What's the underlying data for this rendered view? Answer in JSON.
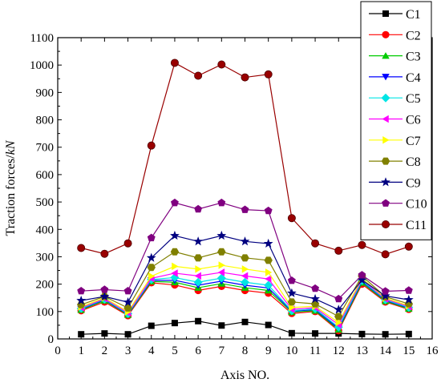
{
  "chart_data": {
    "type": "line",
    "xlabel": "Axis NO.",
    "ylabel_main": "Traction forces/",
    "ylabel_unit": "kN",
    "xlim": [
      0,
      16
    ],
    "ylim": [
      0,
      1100
    ],
    "x_ticks": [
      0,
      1,
      2,
      3,
      4,
      5,
      6,
      7,
      8,
      9,
      10,
      11,
      12,
      13,
      14,
      15,
      16
    ],
    "y_ticks": [
      0,
      100,
      200,
      300,
      400,
      500,
      600,
      700,
      800,
      900,
      1000,
      1100
    ],
    "grid": false,
    "legend_position": "top-right",
    "x": [
      1,
      2,
      3,
      4,
      5,
      6,
      7,
      8,
      9,
      10,
      11,
      12,
      13,
      14,
      15
    ],
    "series": [
      {
        "name": "C1",
        "color": "#000000",
        "marker": "square",
        "values": [
          17,
          20,
          17,
          48,
          58,
          65,
          49,
          62,
          51,
          21,
          20,
          20,
          18,
          17,
          18
        ]
      },
      {
        "name": "C2",
        "color": "#ff0000",
        "marker": "circle",
        "values": [
          103,
          135,
          85,
          205,
          197,
          177,
          192,
          177,
          167,
          93,
          100,
          30,
          200,
          135,
          108
        ]
      },
      {
        "name": "C3",
        "color": "#00cc00",
        "marker": "triangle-up",
        "values": [
          106,
          140,
          88,
          210,
          207,
          187,
          202,
          187,
          177,
          98,
          103,
          34,
          205,
          138,
          110
        ]
      },
      {
        "name": "C4",
        "color": "#0000ff",
        "marker": "triangle-down",
        "values": [
          109,
          143,
          90,
          214,
          214,
          196,
          211,
          196,
          186,
          101,
          107,
          38,
          210,
          141,
          113
        ]
      },
      {
        "name": "C5",
        "color": "#00e5e5",
        "marker": "diamond",
        "values": [
          111,
          145,
          92,
          217,
          224,
          207,
          222,
          207,
          196,
          103,
          110,
          43,
          213,
          143,
          115
        ]
      },
      {
        "name": "C6",
        "color": "#ff00ff",
        "marker": "triangle-left",
        "values": [
          114,
          147,
          95,
          221,
          240,
          230,
          243,
          230,
          219,
          108,
          114,
          52,
          217,
          146,
          118
        ]
      },
      {
        "name": "C7",
        "color": "#ffff00",
        "marker": "triangle-right",
        "values": [
          117,
          150,
          99,
          229,
          265,
          255,
          269,
          255,
          243,
          115,
          119,
          60,
          221,
          149,
          121
        ]
      },
      {
        "name": "C8",
        "color": "#808000",
        "marker": "hexagon",
        "values": [
          125,
          155,
          113,
          261,
          318,
          296,
          318,
          296,
          287,
          135,
          128,
          82,
          230,
          154,
          128
        ]
      },
      {
        "name": "C9",
        "color": "#000080",
        "marker": "star",
        "values": [
          140,
          155,
          134,
          296,
          377,
          356,
          377,
          356,
          348,
          167,
          146,
          107,
          215,
          157,
          143
        ]
      },
      {
        "name": "C10",
        "color": "#800080",
        "marker": "pentagon",
        "values": [
          175,
          180,
          175,
          369,
          497,
          474,
          497,
          472,
          468,
          213,
          184,
          146,
          233,
          174,
          177
        ]
      },
      {
        "name": "C11",
        "color": "#990000",
        "marker": "circle",
        "values": [
          332,
          311,
          349,
          706,
          1008,
          961,
          1002,
          955,
          966,
          441,
          349,
          322,
          343,
          309,
          337
        ]
      }
    ]
  }
}
